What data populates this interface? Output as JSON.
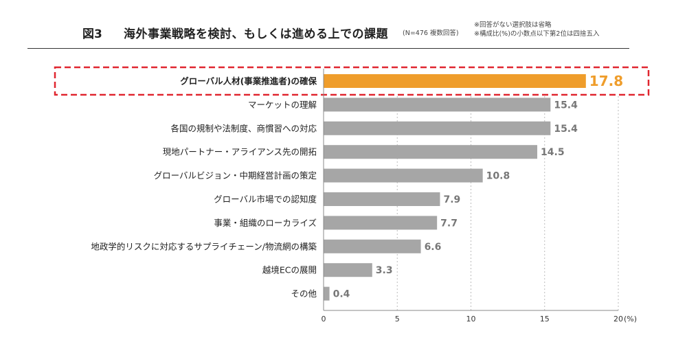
{
  "header": {
    "fig_label": "図3",
    "title": "海外事業戦略を検討、もしくは進める上での課題",
    "n_note": "(N=476 複数回答)",
    "notes": [
      "※回答がない選択肢は省略",
      "※構成比(%)の小数点以下第2位は四捨五入"
    ]
  },
  "colors": {
    "highlight": "#ef9d2b",
    "bar": "#a6a6a6",
    "highlight_box": "#e0262f",
    "value_label": "#777777"
  },
  "chart_data": {
    "type": "bar",
    "orientation": "horizontal",
    "categories": [
      "グローバル人材(事業推進者)の確保",
      "マーケットの理解",
      "各国の規制や法制度、商慣習への対応",
      "現地パートナー・アライアンス先の開拓",
      "グローバルビジョン・中期経営計画の策定",
      "グローバル市場での認知度",
      "事業・組織のローカライズ",
      "地政学的リスクに対応するサプライチェーン/物流網の構築",
      "越境ECの展開",
      "その他"
    ],
    "values": [
      17.8,
      15.4,
      15.4,
      14.5,
      10.8,
      7.9,
      7.7,
      6.6,
      3.3,
      0.4
    ],
    "value_labels": [
      "17.8",
      "15.4",
      "15.4",
      "14.5",
      "10.8",
      "7.9",
      "7.7",
      "6.6",
      "3.3",
      "0.4"
    ],
    "highlight_index": 0,
    "x_ticks": [
      "0",
      "5",
      "10",
      "15",
      "20"
    ],
    "x_unit": "(%)",
    "xlim": [
      0,
      20
    ],
    "grid": "vertical-dashed"
  }
}
